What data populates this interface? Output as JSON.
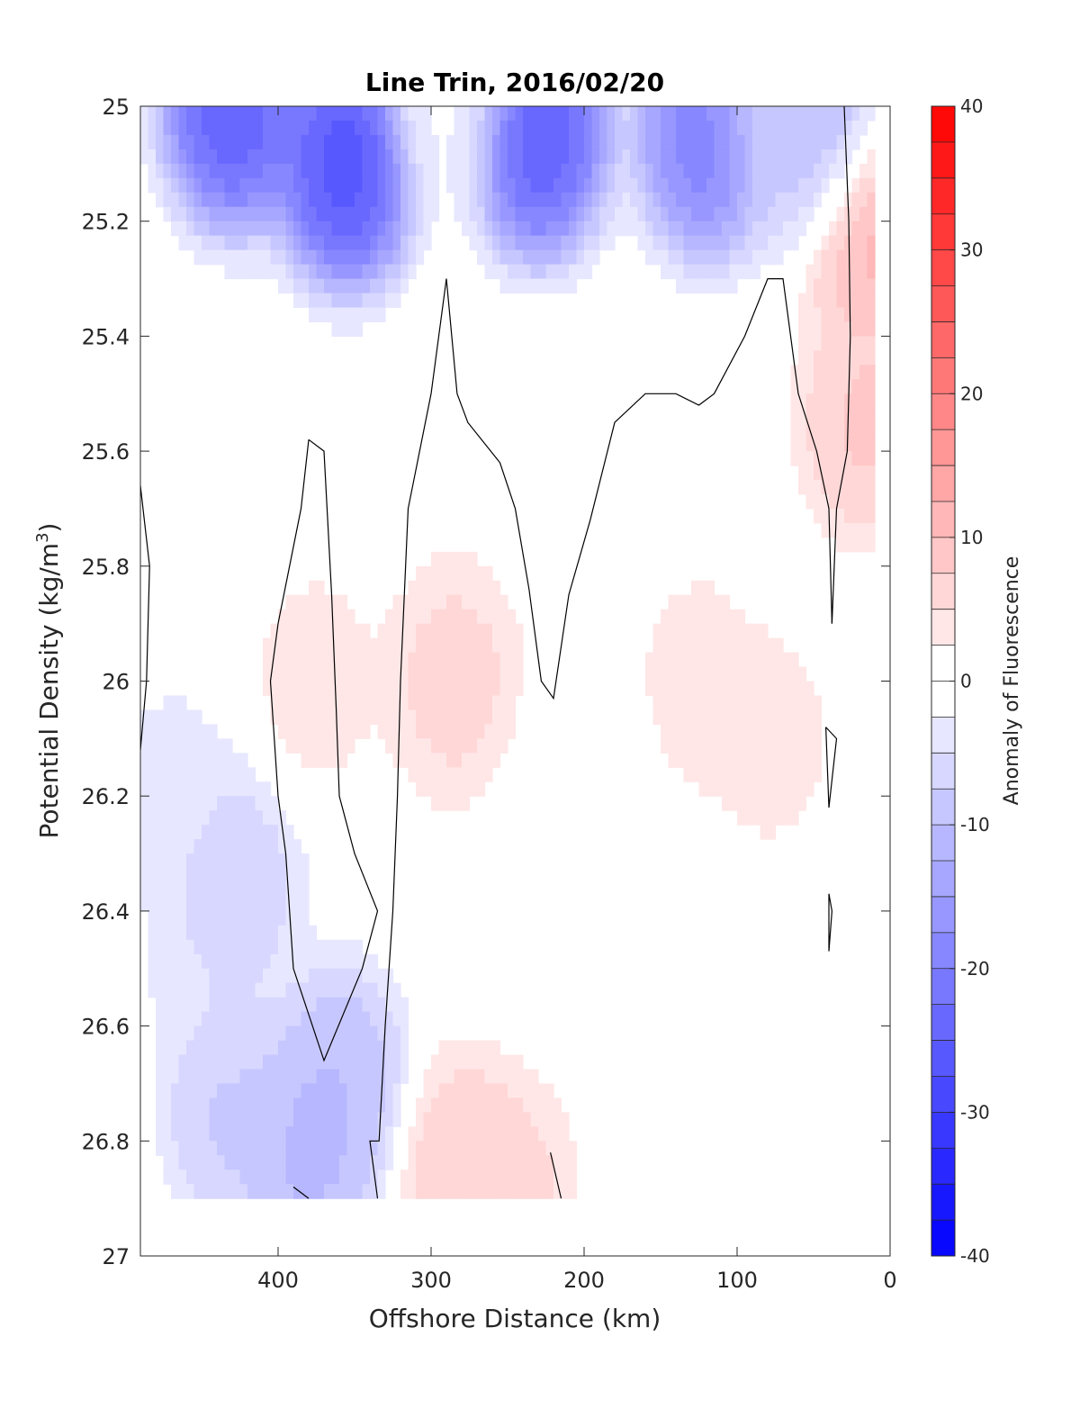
{
  "chart_data": {
    "type": "heatmap",
    "subtype": "filled-contour section",
    "title": "Line Trin, 2016/02/20",
    "xlabel": "Offshore Distance (km)",
    "ylabel_main": "Potential Density (kg/m",
    "ylabel_sup": "3",
    "ylabel_close": ")",
    "xlim": [
      490,
      0
    ],
    "x_reversed": true,
    "ylim": [
      25,
      27
    ],
    "y_reversed": true,
    "x_ticks": [
      400,
      300,
      200,
      100,
      0
    ],
    "x_tick_labels": [
      "400",
      "300",
      "200",
      "100",
      "0"
    ],
    "y_ticks": [
      25,
      25.2,
      25.4,
      25.6,
      25.8,
      26,
      26.2,
      26.4,
      26.6,
      26.8,
      27
    ],
    "y_tick_labels": [
      "25",
      "25.2",
      "25.4",
      "25.6",
      "25.8",
      "26",
      "26.2",
      "26.4",
      "26.6",
      "26.8",
      "27"
    ],
    "colorbar": {
      "label": "Anomaly of Fluorescence",
      "range": [
        -40,
        40
      ],
      "ticks": [
        -40,
        -30,
        -20,
        -10,
        0,
        10,
        20,
        30,
        40
      ],
      "tick_labels": [
        "-40",
        "-30",
        "-20",
        "-10",
        "0",
        "10",
        "20",
        "30",
        "40"
      ],
      "level_step": 2.5,
      "colormap": "blue-white-red",
      "low_color": "#0000ff",
      "mid_color": "#ffffff",
      "high_color": "#ff0000"
    },
    "grid": false,
    "data_extent": {
      "x": [
        490,
        10
      ],
      "y": [
        25,
        26.9
      ]
    },
    "field_peaks": [
      {
        "x": 430,
        "y": 25.0,
        "v": -28
      },
      {
        "x": 355,
        "y": 25.1,
        "v": -30
      },
      {
        "x": 230,
        "y": 25.05,
        "v": -28
      },
      {
        "x": 120,
        "y": 25.05,
        "v": -22
      },
      {
        "x": 45,
        "y": 25.05,
        "v": -14
      },
      {
        "x": 290,
        "y": 25.0,
        "v": -2
      },
      {
        "x": 75,
        "y": 25.0,
        "v": -5
      },
      {
        "x": 470,
        "y": 26.2,
        "v": -4
      },
      {
        "x": 440,
        "y": 26.5,
        "v": -5
      },
      {
        "x": 430,
        "y": 26.75,
        "v": -9
      },
      {
        "x": 360,
        "y": 26.7,
        "v": -11
      },
      {
        "x": 380,
        "y": 26.82,
        "v": -12
      },
      {
        "x": 430,
        "y": 26.35,
        "v": -8
      },
      {
        "x": 285,
        "y": 26.0,
        "v": 7
      },
      {
        "x": 280,
        "y": 26.85,
        "v": 8
      },
      {
        "x": 250,
        "y": 26.9,
        "v": 7
      },
      {
        "x": 375,
        "y": 26.0,
        "v": 4
      },
      {
        "x": 125,
        "y": 26.0,
        "v": 4
      },
      {
        "x": 80,
        "y": 26.1,
        "v": 4
      },
      {
        "x": 15,
        "y": 25.2,
        "v": 13
      },
      {
        "x": 15,
        "y": 25.55,
        "v": 9
      },
      {
        "x": 205,
        "y": 26.2,
        "v": -1
      },
      {
        "x": 95,
        "y": 26.6,
        "v": 1
      }
    ],
    "zero_contours_approx": [
      [
        [
          490,
          25.66
        ],
        [
          484,
          25.8
        ],
        [
          486,
          26.0
        ],
        [
          490,
          26.12
        ]
      ],
      [
        [
          380,
          25.58
        ],
        [
          370,
          25.6
        ],
        [
          365,
          25.85
        ],
        [
          362,
          26.05
        ],
        [
          360,
          26.2
        ],
        [
          350,
          26.3
        ],
        [
          335,
          26.4
        ],
        [
          345,
          26.5
        ],
        [
          370,
          26.66
        ],
        [
          390,
          26.5
        ],
        [
          395,
          26.3
        ],
        [
          400,
          26.2
        ],
        [
          405,
          26.0
        ],
        [
          400,
          25.9
        ],
        [
          385,
          25.7
        ],
        [
          380,
          25.58
        ]
      ],
      [
        [
          290,
          25.3
        ],
        [
          283,
          25.5
        ],
        [
          276,
          25.55
        ],
        [
          255,
          25.62
        ],
        [
          245,
          25.7
        ],
        [
          236,
          25.84
        ],
        [
          228,
          26.0
        ],
        [
          220,
          26.03
        ],
        [
          210,
          25.85
        ],
        [
          196,
          25.72
        ],
        [
          180,
          25.55
        ],
        [
          160,
          25.5
        ],
        [
          140,
          25.5
        ],
        [
          125,
          25.52
        ],
        [
          115,
          25.5
        ],
        [
          95,
          25.4
        ],
        [
          80,
          25.3
        ],
        [
          70,
          25.3
        ],
        [
          60,
          25.5
        ],
        [
          48,
          25.6
        ],
        [
          40,
          25.7
        ],
        [
          38,
          25.9
        ]
      ],
      [
        [
          290,
          25.3
        ],
        [
          300,
          25.5
        ],
        [
          315,
          25.7
        ],
        [
          320,
          26.0
        ],
        [
          322,
          26.2
        ],
        [
          325,
          26.4
        ],
        [
          330,
          26.6
        ],
        [
          334,
          26.8
        ],
        [
          340,
          26.8
        ],
        [
          335,
          26.9
        ]
      ],
      [
        [
          30,
          25.0
        ],
        [
          27,
          25.2
        ],
        [
          26,
          25.4
        ],
        [
          28,
          25.6
        ],
        [
          35,
          25.7
        ],
        [
          38,
          25.9
        ]
      ],
      [
        [
          42,
          26.08
        ],
        [
          35,
          26.1
        ],
        [
          40,
          26.22
        ],
        [
          42,
          26.08
        ]
      ],
      [
        [
          40,
          26.37
        ],
        [
          38,
          26.4
        ],
        [
          40,
          26.47
        ],
        [
          40,
          26.37
        ]
      ],
      [
        [
          222,
          26.82
        ],
        [
          215,
          26.9
        ]
      ],
      [
        [
          390,
          26.88
        ],
        [
          380,
          26.9
        ]
      ]
    ]
  }
}
